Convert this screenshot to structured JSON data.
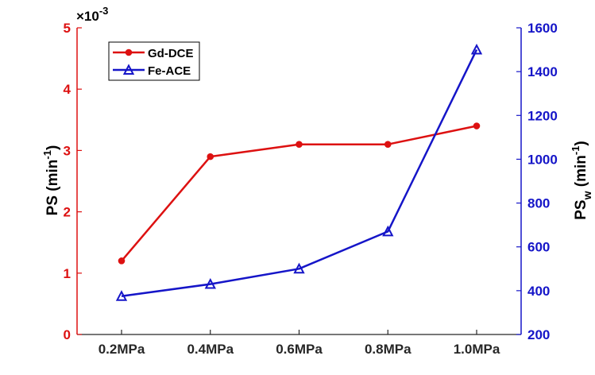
{
  "chart_data": {
    "type": "line",
    "categories": [
      "0.2MPa",
      "0.4MPa",
      "0.6MPa",
      "0.8MPa",
      "1.0MPa"
    ],
    "series": [
      {
        "name": "Gd-DCE",
        "axis": "left",
        "color": "#dd1111",
        "marker": "circle",
        "values": [
          1.2,
          2.9,
          3.1,
          3.1,
          3.4
        ]
      },
      {
        "name": "Fe-ACE",
        "axis": "right",
        "color": "#1515c8",
        "marker": "triangle",
        "values": [
          375,
          430,
          500,
          670,
          1500
        ]
      }
    ],
    "left_axis": {
      "label_main": "PS (min",
      "label_sup": "-1",
      "label_end": ")",
      "exponent_prefix": "×10",
      "exponent_value": "-3",
      "ylim": [
        0,
        5
      ],
      "ticks": [
        "0",
        "1",
        "2",
        "3",
        "4",
        "5"
      ],
      "color": "#dd1111"
    },
    "right_axis": {
      "label_main": "PS",
      "label_sub": "w",
      "label_mid": " (min",
      "label_sup": "-1",
      "label_end": ")",
      "ylim": [
        200,
        1600
      ],
      "ticks": [
        "200",
        "400",
        "600",
        "800",
        "1000",
        "1200",
        "1400",
        "1600"
      ],
      "color": "#1515c8"
    },
    "legend": {
      "position": "top-left"
    },
    "grid": false
  }
}
